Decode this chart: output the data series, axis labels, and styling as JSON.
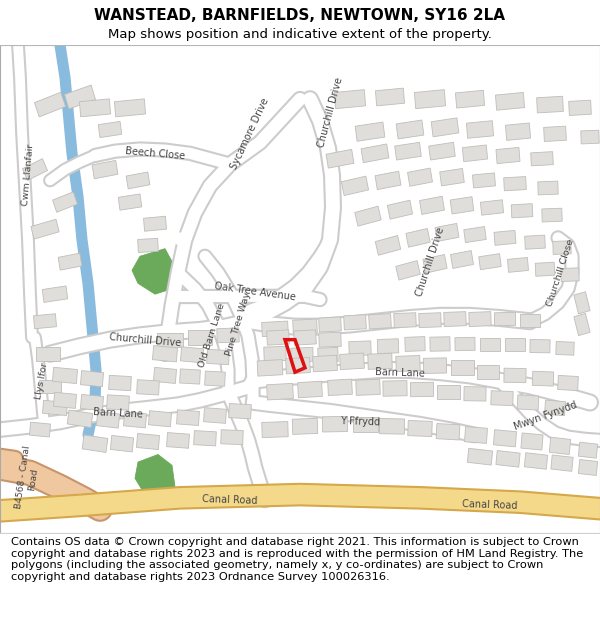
{
  "title": "WANSTEAD, BARNFIELDS, NEWTOWN, SY16 2LA",
  "subtitle": "Map shows position and indicative extent of the property.",
  "footer": "Contains OS data © Crown copyright and database right 2021. This information is subject to Crown copyright and database rights 2023 and is reproduced with the permission of HM Land Registry. The polygons (including the associated geometry, namely x, y co-ordinates) are subject to Crown copyright and database rights 2023 Ordnance Survey 100026316.",
  "map_bg": "#f2f0eb",
  "road_color": "#ffffff",
  "road_outline": "#cccccc",
  "main_road_color": "#f5d98b",
  "main_road_outline": "#d4a84b",
  "b_road_color": "#f0c8a0",
  "b_road_outline": "#c8946a",
  "building_color": "#e0deda",
  "building_outline": "#c0beba",
  "green_color": "#6aaa5a",
  "blue_color": "#88bbdd",
  "plot_color": "#dd1111",
  "white": "#ffffff",
  "header_bg": "#ffffff",
  "footer_bg": "#ffffff",
  "title_fontsize": 11,
  "subtitle_fontsize": 9.5,
  "footer_fontsize": 8.2,
  "label_color": "#444444"
}
